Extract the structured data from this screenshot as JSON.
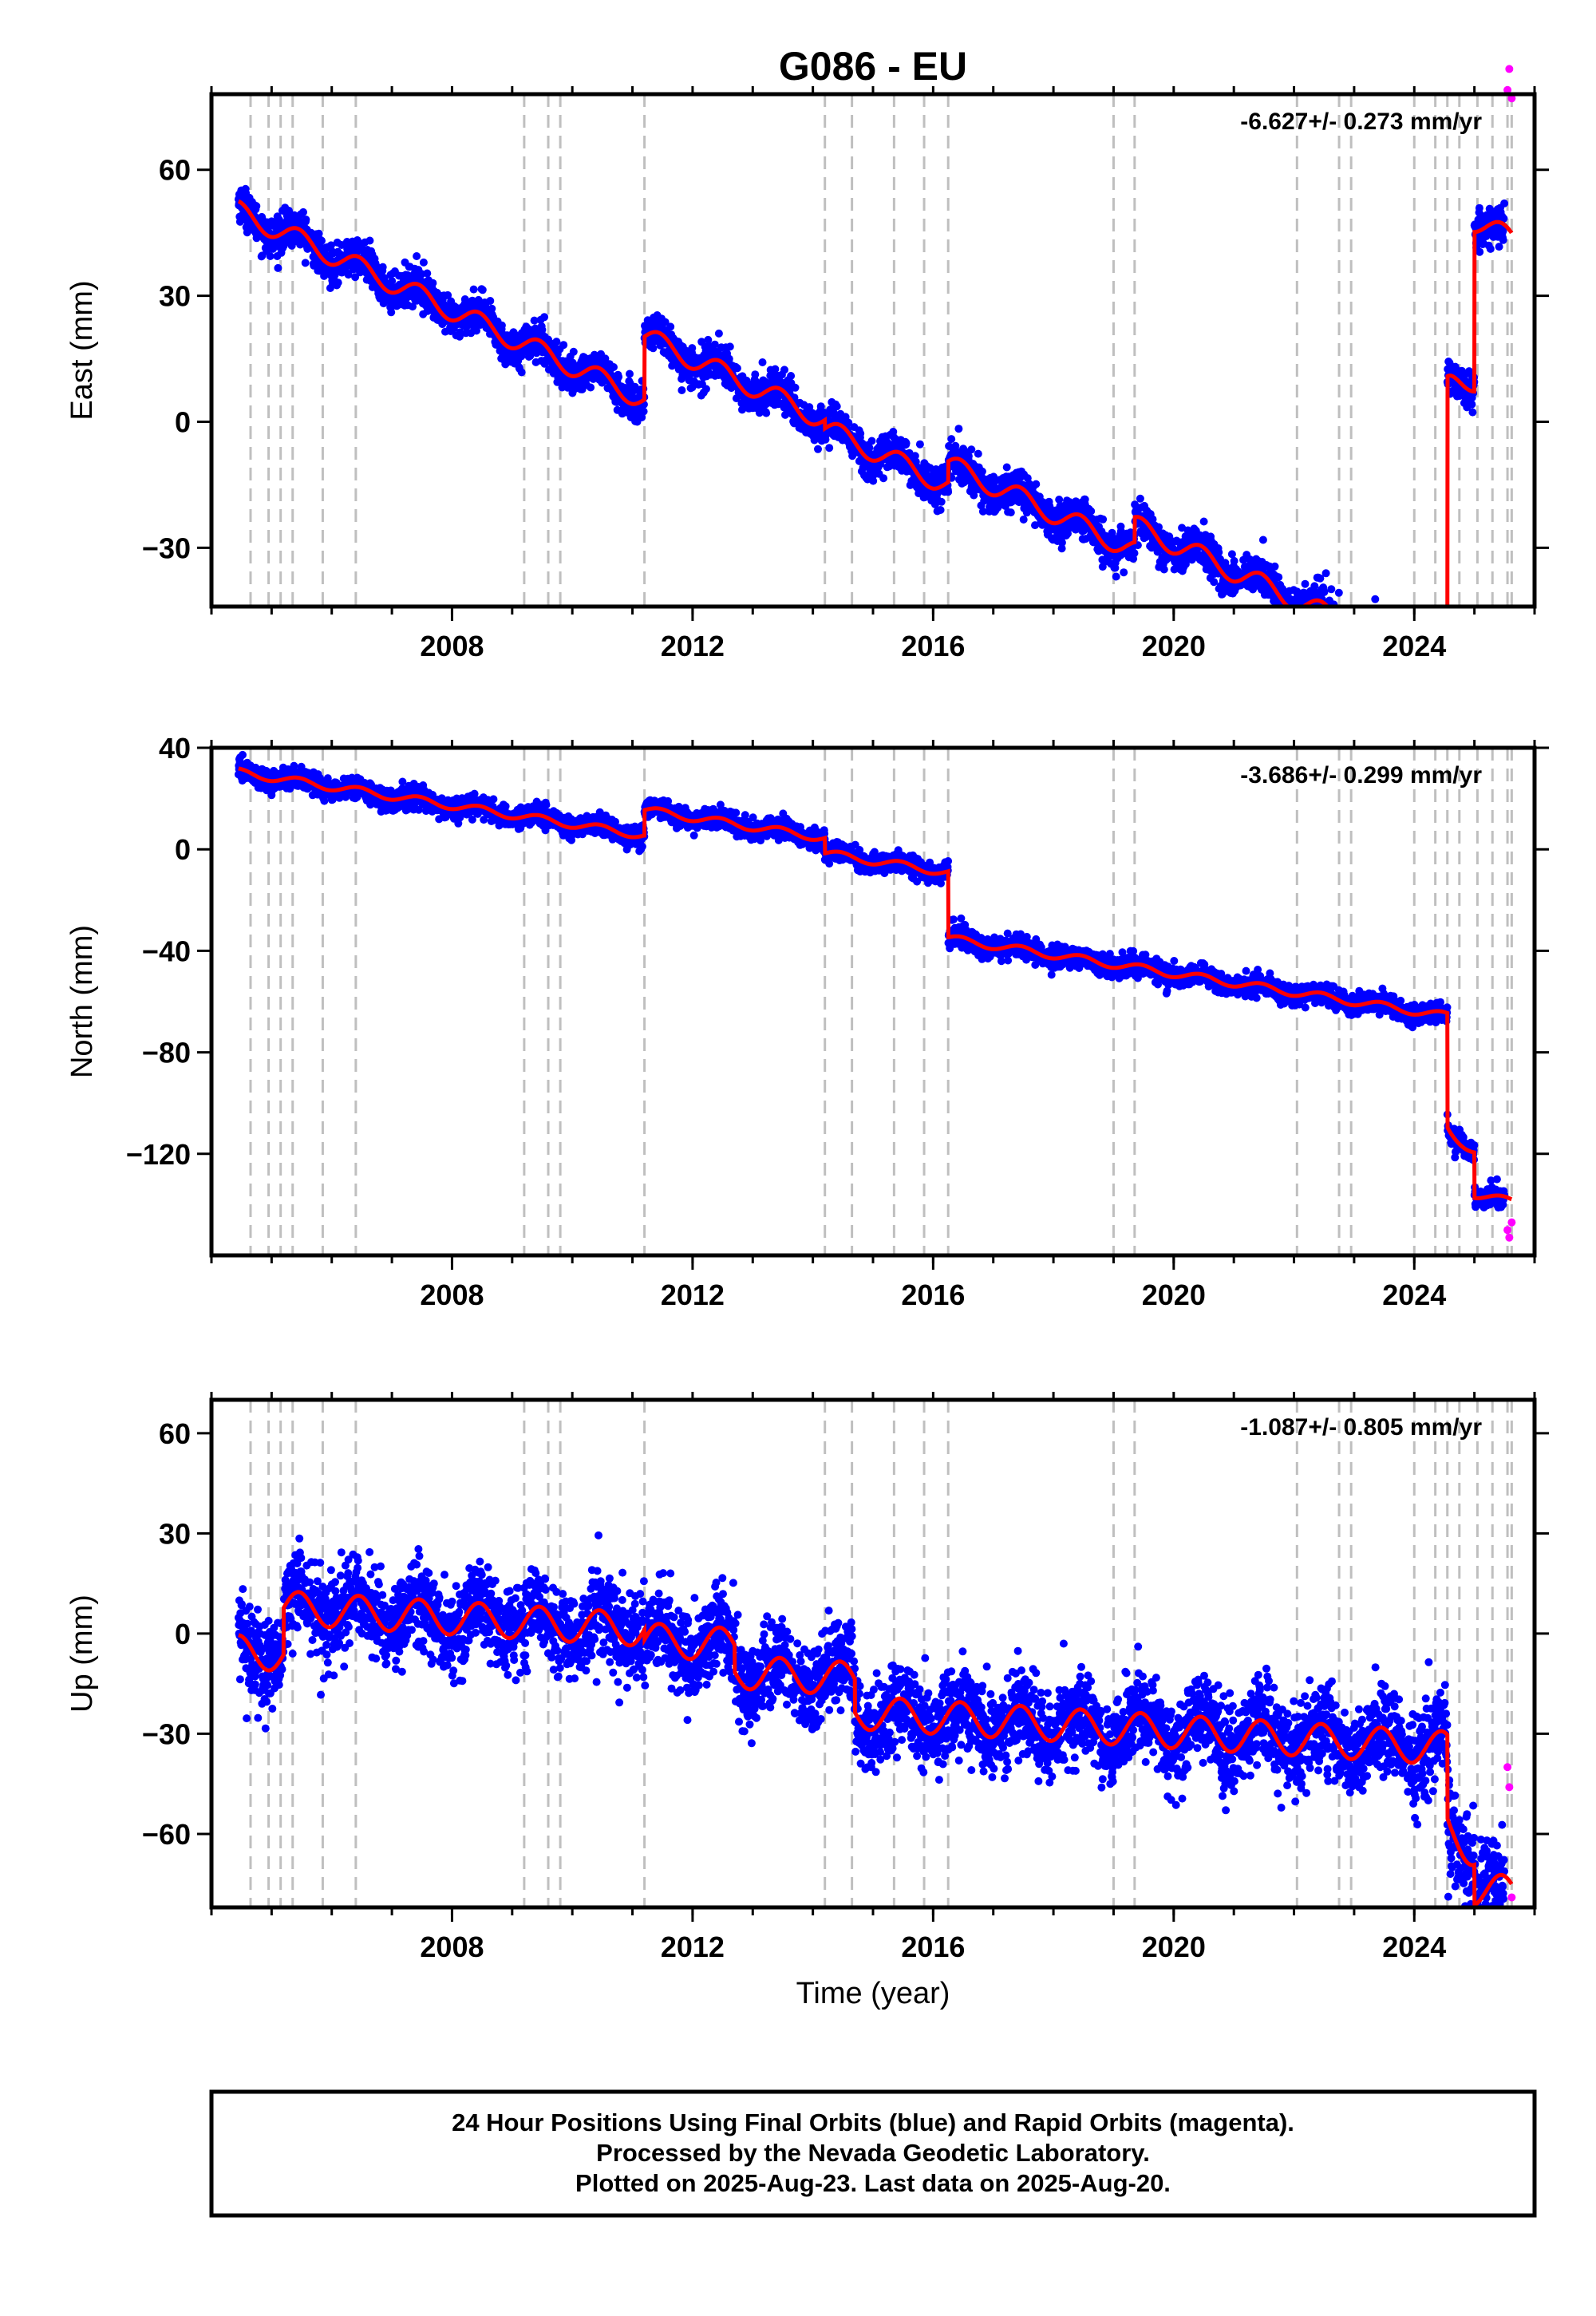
{
  "title": "G086 - EU",
  "colors": {
    "final": "#0000ff",
    "rapid": "#ff00ff",
    "model": "#ff0000",
    "event_line": "#bfbfbf"
  },
  "chart_data": [
    {
      "type": "scatter",
      "ylabel": "East (mm)",
      "rate": "-6.627+/- 0.273 mm/yr",
      "xlim": [
        2004.0,
        2026.0
      ],
      "ylim": [
        -44,
        78
      ],
      "xticks": [
        2008,
        2012,
        2016,
        2020,
        2024
      ],
      "xtick_labels": [
        "2008",
        "2012",
        "2016",
        "2020",
        "2024"
      ],
      "yticks": [
        -30,
        0,
        30,
        60
      ],
      "ytick_labels": [
        "−30",
        "0",
        "30",
        "60"
      ],
      "rate_mm_yr": -6.627,
      "start_value": 53,
      "offsets": [
        [
          2011.2,
          15
        ],
        [
          2014.2,
          -2
        ],
        [
          2016.25,
          5
        ],
        [
          2019.35,
          6
        ],
        [
          2024.55,
          68
        ],
        [
          2025.0,
          38
        ]
      ],
      "seasonal_amp": 2.5,
      "noise": 2.2,
      "post_event_decay": 4,
      "rapid_points": [
        [
          2025.55,
          79
        ],
        [
          2025.58,
          84
        ],
        [
          2025.62,
          77
        ]
      ],
      "grid": false
    },
    {
      "type": "scatter",
      "ylabel": "North (mm)",
      "rate": "-3.686+/- 0.299 mm/yr",
      "xlim": [
        2004.0,
        2026.0
      ],
      "ylim": [
        -160,
        40
      ],
      "xticks": [
        2008,
        2012,
        2016,
        2020,
        2024
      ],
      "xtick_labels": [
        "2008",
        "2012",
        "2016",
        "2020",
        "2024"
      ],
      "yticks": [
        -120,
        -80,
        -40,
        0,
        40
      ],
      "ytick_labels": [
        "−120",
        "−80",
        "−40",
        "0",
        "40"
      ],
      "rate_mm_yr": -3.686,
      "start_value": 32,
      "offsets": [
        [
          2011.2,
          10
        ],
        [
          2014.2,
          -6
        ],
        [
          2016.25,
          -26
        ],
        [
          2024.55,
          -45
        ],
        [
          2025.0,
          -18
        ]
      ],
      "seasonal_amp": 1.5,
      "noise": 2,
      "post_event_decay": -6,
      "rapid_points": [
        [
          2025.55,
          -150
        ],
        [
          2025.58,
          -153
        ],
        [
          2025.62,
          -147
        ]
      ],
      "grid": false
    },
    {
      "type": "scatter",
      "ylabel": "Up (mm)",
      "xlabel": "Time (year)",
      "rate": "-1.087+/- 0.805 mm/yr",
      "xlim": [
        2004.0,
        2026.0
      ],
      "ylim": [
        -82,
        70
      ],
      "xticks": [
        2008,
        2012,
        2016,
        2020,
        2024
      ],
      "xtick_labels": [
        "2008",
        "2012",
        "2016",
        "2020",
        "2024"
      ],
      "yticks": [
        -60,
        -30,
        0,
        30,
        60
      ],
      "ytick_labels": [
        "−60",
        "−30",
        "0",
        "30",
        "60"
      ],
      "rate_mm_yr": -1.087,
      "start_value": -5,
      "offsets": [
        [
          2005.2,
          14
        ],
        [
          2011.2,
          -3
        ],
        [
          2012.7,
          -8
        ],
        [
          2014.7,
          -10
        ],
        [
          2024.55,
          -25
        ],
        [
          2025.0,
          -12
        ]
      ],
      "seasonal_amp": 5,
      "noise": 6.5,
      "post_event_decay": -5,
      "rapid_points": [
        [
          2025.55,
          -40
        ],
        [
          2025.58,
          -46
        ],
        [
          2025.62,
          -79
        ]
      ],
      "grid": false
    }
  ],
  "event_lines": [
    2004.65,
    2004.95,
    2005.15,
    2005.35,
    2005.85,
    2006.4,
    2009.2,
    2009.6,
    2009.8,
    2011.2,
    2014.2,
    2014.65,
    2015.35,
    2015.85,
    2016.25,
    2019.0,
    2019.35,
    2022.05,
    2022.75,
    2022.95,
    2024.0,
    2024.35,
    2024.55,
    2024.75,
    2025.05,
    2025.3,
    2025.55,
    2025.62
  ],
  "footer": {
    "line1": "24 Hour Positions Using Final Orbits (blue) and Rapid Orbits (magenta).",
    "line2": "Processed by the Nevada Geodetic Laboratory.",
    "line3": "Plotted on 2025-Aug-23. Last data on 2025-Aug-20."
  }
}
